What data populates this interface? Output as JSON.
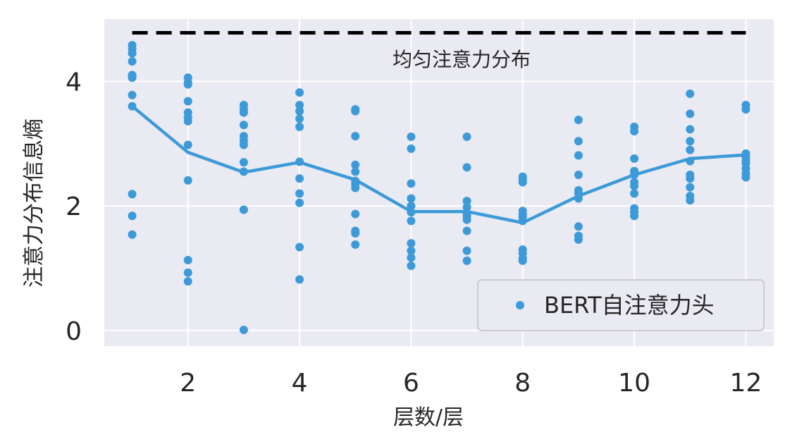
{
  "chart_data": {
    "type": "scatter",
    "xlabel": "层数/层",
    "ylabel": "注意力分布信息熵",
    "xlim": [
      0.5,
      12.5
    ],
    "ylim": [
      -0.25,
      5.0
    ],
    "xticks": [
      "2",
      "4",
      "6",
      "8",
      "10",
      "12"
    ],
    "yticks": [
      "0",
      "2",
      "4"
    ],
    "grid": true,
    "legend": {
      "label": "BERT自注意力头",
      "placement": "bottom-right"
    },
    "colors": {
      "points": "#3c9ad9",
      "mean_line": "#3c9ad9",
      "uniform_line": "#000000",
      "plot_bg": "#eaeaf2",
      "grid": "#ffffff"
    },
    "reference_line": {
      "label": "均匀注意力分布",
      "y": 4.78,
      "style": "dashed"
    },
    "heads": [
      {
        "layer": 1,
        "values": [
          4.58,
          4.52,
          4.45,
          4.32,
          4.1,
          4.06,
          3.78,
          3.6,
          2.19,
          1.84,
          1.54
        ]
      },
      {
        "layer": 2,
        "values": [
          4.06,
          3.98,
          3.95,
          3.68,
          3.5,
          3.42,
          3.36,
          2.98,
          2.41,
          1.13,
          0.93,
          0.79
        ]
      },
      {
        "layer": 3,
        "values": [
          3.62,
          3.55,
          3.5,
          3.3,
          3.12,
          3.05,
          2.98,
          2.7,
          2.55,
          1.94,
          0.01
        ]
      },
      {
        "layer": 4,
        "values": [
          3.82,
          3.62,
          3.52,
          3.4,
          3.27,
          2.71,
          2.44,
          2.2,
          2.05,
          1.34,
          0.82
        ]
      },
      {
        "layer": 5,
        "values": [
          3.55,
          3.52,
          3.12,
          2.66,
          2.55,
          2.4,
          2.35,
          2.29,
          1.87,
          1.6,
          1.56,
          1.38
        ]
      },
      {
        "layer": 6,
        "values": [
          3.11,
          2.92,
          2.36,
          2.12,
          2.0,
          1.9,
          1.76,
          1.4,
          1.28,
          1.17,
          1.04
        ]
      },
      {
        "layer": 7,
        "values": [
          3.11,
          2.62,
          2.08,
          1.98,
          1.88,
          1.84,
          1.78,
          1.6,
          1.28,
          1.12
        ]
      },
      {
        "layer": 8,
        "values": [
          2.47,
          2.42,
          2.38,
          1.92,
          1.86,
          1.82,
          1.76,
          1.3,
          1.24,
          1.16,
          1.12
        ]
      },
      {
        "layer": 9,
        "values": [
          3.38,
          3.04,
          2.81,
          2.5,
          2.25,
          2.2,
          2.12,
          1.67,
          1.52,
          1.46
        ]
      },
      {
        "layer": 10,
        "values": [
          3.27,
          3.2,
          2.76,
          2.56,
          2.5,
          2.38,
          2.32,
          2.2,
          1.96,
          1.9,
          1.84
        ]
      },
      {
        "layer": 11,
        "values": [
          3.8,
          3.48,
          3.23,
          3.04,
          2.9,
          2.72,
          2.5,
          2.44,
          2.3,
          2.16,
          2.09
        ]
      },
      {
        "layer": 12,
        "values": [
          3.62,
          3.55,
          2.84,
          2.78,
          2.72,
          2.68,
          2.6,
          2.52,
          2.46
        ]
      }
    ],
    "mean_line": {
      "x": [
        1,
        2,
        3,
        4,
        5,
        6,
        7,
        8,
        9,
        10,
        11,
        12
      ],
      "y": [
        3.6,
        2.86,
        2.54,
        2.7,
        2.42,
        1.91,
        1.91,
        1.73,
        2.16,
        2.5,
        2.76,
        2.82
      ]
    }
  }
}
